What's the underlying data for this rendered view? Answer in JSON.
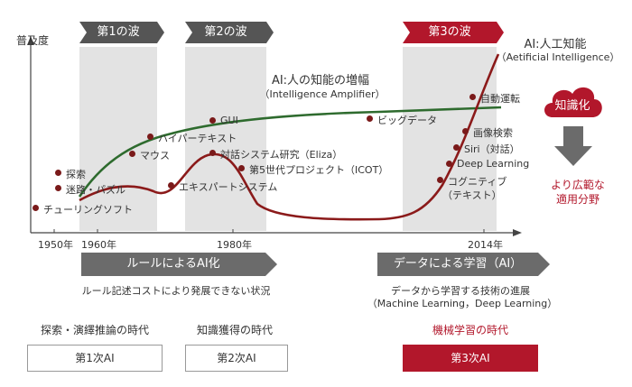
{
  "waves": [
    {
      "label": "第1の波"
    },
    {
      "label": "第2の波"
    },
    {
      "label": "第3の波"
    }
  ],
  "axis": {
    "y_label": "普及度",
    "x_ticks": [
      "1950年",
      "1960年",
      "1980年",
      "2014年"
    ]
  },
  "ia_annotation": {
    "title": "AI:人の知能の増幅",
    "subtitle": "（Intelligence Amplifier）"
  },
  "ai_annotation": {
    "title": "AI:人工知能",
    "subtitle": "（Aetificial Intelligence）"
  },
  "milestones": [
    {
      "label": "GUI"
    },
    {
      "label": "ハイパーテキスト"
    },
    {
      "label": "マウス"
    },
    {
      "label": "対話システム研究（Eliza）"
    },
    {
      "label": "第5世代プロジェクト（ICOT）"
    },
    {
      "label": "エキスパートシステム"
    },
    {
      "label": "探索"
    },
    {
      "label": "迷路・パズル"
    },
    {
      "label": "チューリングソフト"
    },
    {
      "label": "ビッグデータ"
    },
    {
      "label": "自動運転"
    },
    {
      "label": "画像検索"
    },
    {
      "label": "Siri（対話）"
    },
    {
      "label": "Deep Learning"
    },
    {
      "label": "コグニティブ"
    },
    {
      "label": "（テキスト）"
    }
  ],
  "right_panel": {
    "cloud_label": "知識化",
    "result_line1": "より広範な",
    "result_line2": "適用分野"
  },
  "approaches": [
    {
      "label": "ルールによるAI化",
      "desc": "ルール記述コストにより発展できない状況",
      "desc2": ""
    },
    {
      "label": "データによる学習（AI）",
      "desc": "データから学習する技術の進展",
      "desc2": "（Machine Learning，Deep Learning）"
    }
  ],
  "eras": [
    {
      "title": "探索・演繹推論の時代",
      "box": "第1次AI"
    },
    {
      "title": "知識獲得の時代",
      "box": "第2次AI"
    },
    {
      "title": "機械学習の時代",
      "box": "第3次AI"
    }
  ],
  "colors": {
    "dark_red": "#8b1a1a",
    "green": "#2e6b2e",
    "accent_red": "#b2172b",
    "band_gray": "#e3e3e3"
  }
}
